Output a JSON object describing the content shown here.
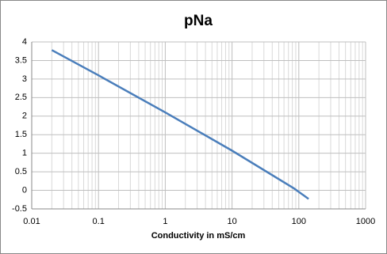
{
  "chart_data": {
    "type": "line",
    "title": "pNa",
    "xlabel": "Conductivity in mS/cm",
    "x": [
      0.02,
      0.1,
      1,
      10,
      85,
      140
    ],
    "values": [
      3.78,
      3.1,
      2.1,
      1.07,
      0.05,
      -0.23
    ],
    "color": "#4a7ebb",
    "xscale": "log",
    "xlim": [
      0.01,
      1000
    ],
    "xticks": [
      0.01,
      0.1,
      1,
      10,
      100,
      1000
    ],
    "ylim": [
      -0.5,
      4
    ],
    "yticks": [
      -0.5,
      0,
      0.5,
      1,
      1.5,
      2,
      2.5,
      3,
      3.5,
      4
    ],
    "grid": true
  }
}
